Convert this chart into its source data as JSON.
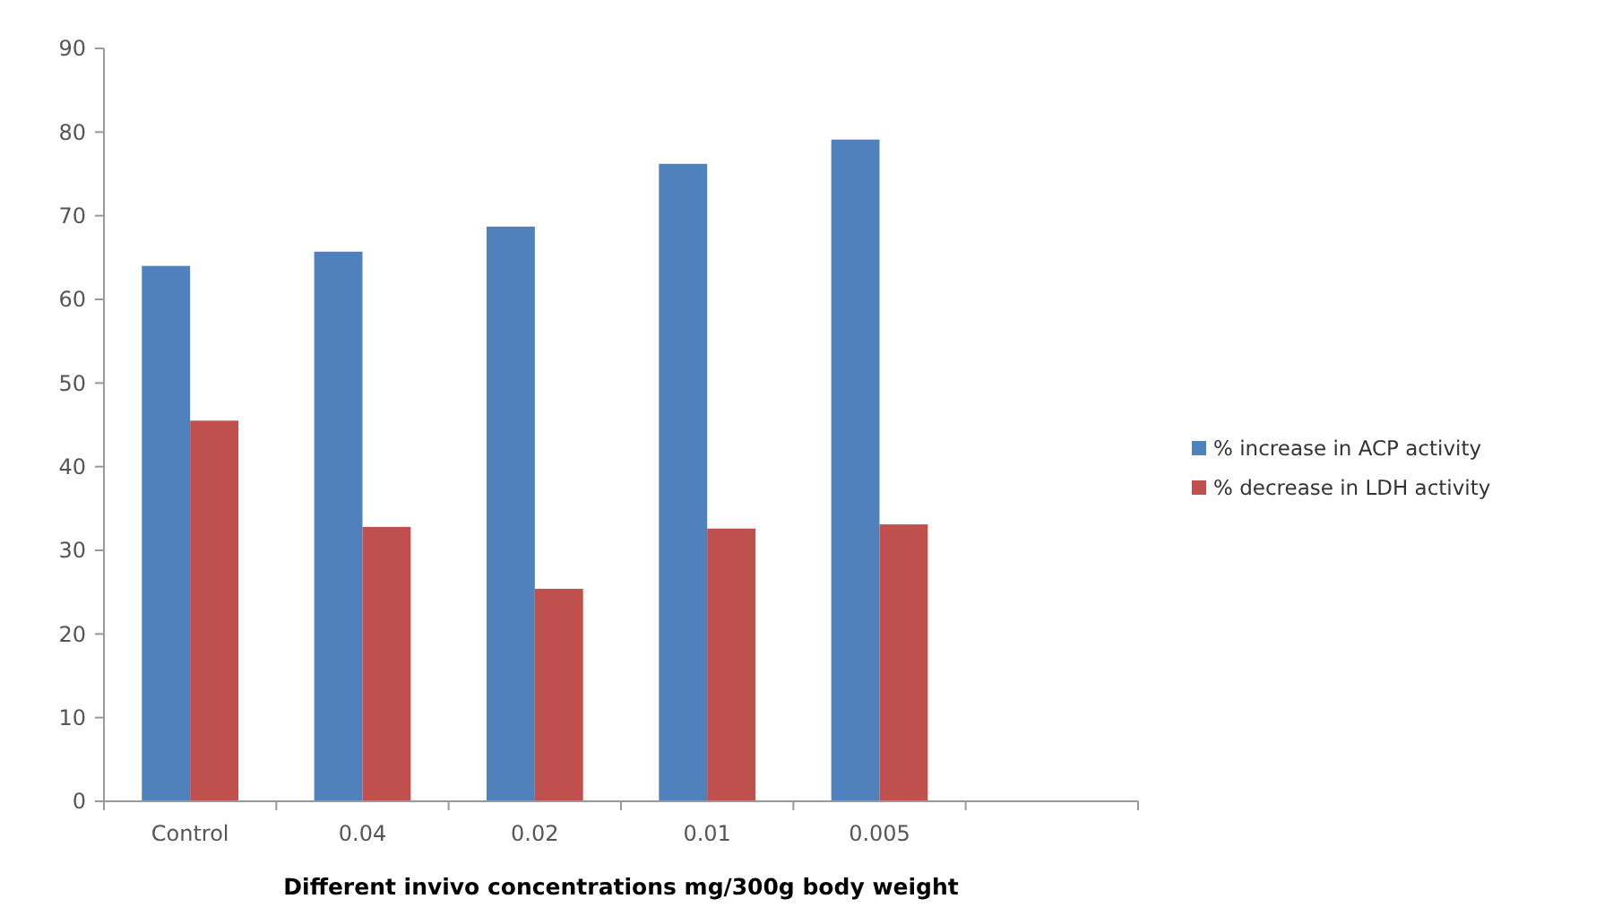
{
  "chart_data": {
    "type": "bar",
    "xlabel": "Different invivo concentrations mg/300g body weight",
    "categories": [
      "Control",
      "0.04",
      "0.02",
      "0.01",
      "0.005",
      null
    ],
    "series": [
      {
        "name": "% increase in ACP activity",
        "color": "#4f81bd",
        "values": [
          64.0,
          65.7,
          68.7,
          76.2,
          79.1,
          null
        ]
      },
      {
        "name": "% decrease in LDH activity",
        "color": "#c0504d",
        "values": [
          45.5,
          32.8,
          25.4,
          32.6,
          33.1,
          null
        ]
      }
    ],
    "ylim": [
      0,
      90
    ],
    "yticks": [
      0,
      10,
      20,
      30,
      40,
      50,
      60,
      70,
      80,
      90
    ],
    "grid": false,
    "legend": "right"
  }
}
